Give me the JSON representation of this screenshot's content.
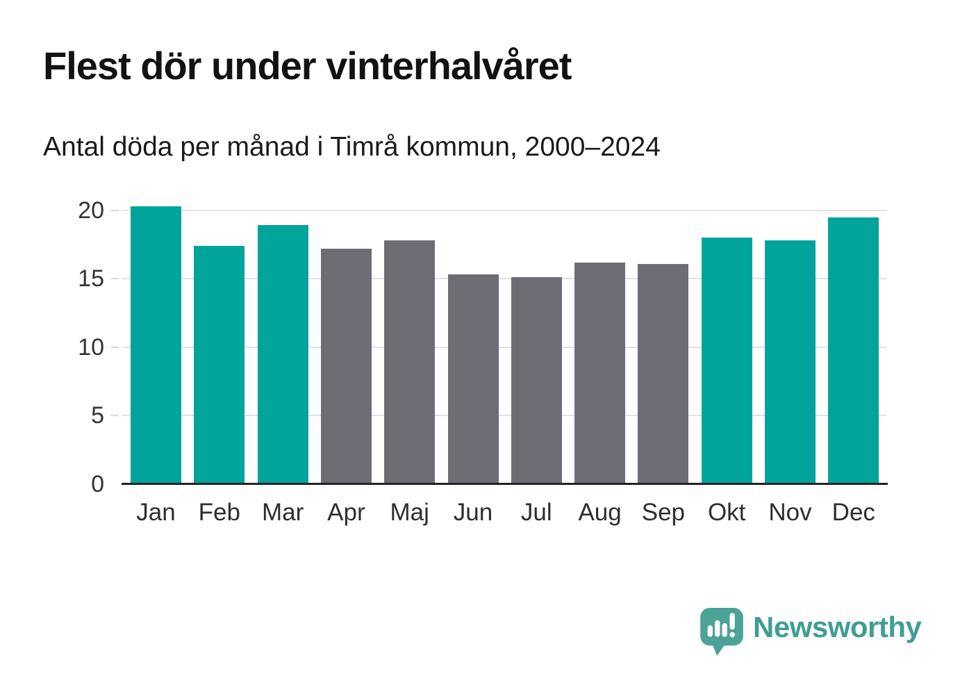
{
  "header": {
    "title": "Flest dör under vinterhalvåret",
    "subtitle": "Antal döda per månad i Timrå kommun, 2000–2024"
  },
  "chart_data": {
    "type": "bar",
    "title": "Flest dör under vinterhalvåret",
    "subtitle": "Antal döda per månad i Timrå kommun, 2000–2024",
    "categories": [
      "Jan",
      "Feb",
      "Mar",
      "Apr",
      "Maj",
      "Jun",
      "Jul",
      "Aug",
      "Sep",
      "Okt",
      "Nov",
      "Dec"
    ],
    "values": [
      20.3,
      17.4,
      18.9,
      17.2,
      17.8,
      15.3,
      15.1,
      16.2,
      16.1,
      18.0,
      17.8,
      19.5
    ],
    "bar_color_keys": [
      "winter",
      "winter",
      "winter",
      "summer",
      "summer",
      "summer",
      "summer",
      "summer",
      "summer",
      "winter",
      "winter",
      "winter"
    ],
    "colors": {
      "winter": "#00a49a",
      "summer": "#6e6c74"
    },
    "xlabel": "",
    "ylabel": "",
    "ylim": [
      0,
      21
    ],
    "yticks": [
      0,
      5,
      10,
      15,
      20
    ],
    "grid": true,
    "legend": "none"
  },
  "footer": {
    "brand": "Newsworthy",
    "brand_color": "#3f9e94",
    "logo_color": "#4ba296",
    "logo_icon": "bar-chart-speech-bubble-icon"
  }
}
